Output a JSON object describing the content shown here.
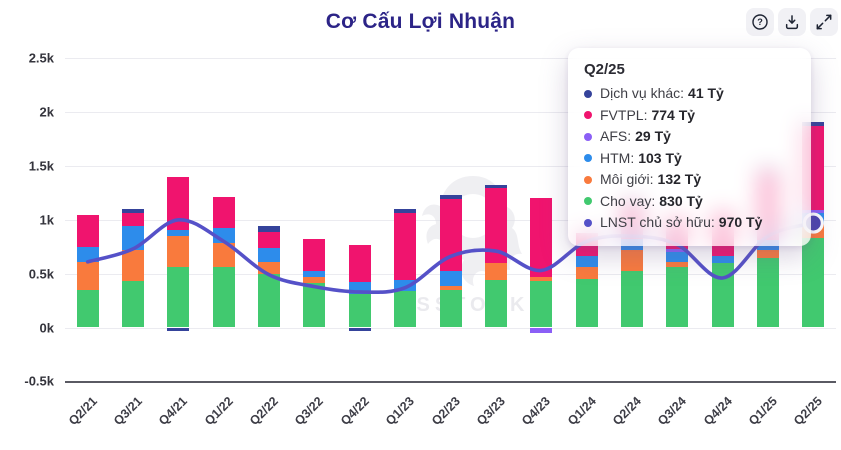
{
  "header": {
    "title": "Cơ Cấu Lợi Nhuận",
    "buttons": {
      "help": "help-button",
      "download": "download-button",
      "expand": "expand-button"
    }
  },
  "watermark_text": "SSTOCK",
  "chart_data": {
    "type": "bar",
    "subtype": "stacked-bars-with-line",
    "title": "Cơ Cấu Lợi Nhuận",
    "unit": "Tỷ",
    "categories": [
      "Q2/21",
      "Q3/21",
      "Q4/21",
      "Q1/22",
      "Q2/22",
      "Q3/22",
      "Q4/22",
      "Q1/23",
      "Q2/23",
      "Q3/23",
      "Q4/23",
      "Q1/24",
      "Q2/24",
      "Q3/24",
      "Q4/24",
      "Q1/25",
      "Q2/25"
    ],
    "y_axis": {
      "tick_labels": [
        "2.5k",
        "2k",
        "1.5k",
        "1k",
        "0.5k",
        "0k",
        "-0.5k"
      ],
      "tick_values": [
        2500,
        2000,
        1500,
        1000,
        500,
        0,
        -500
      ],
      "min": -500,
      "max": 2500,
      "grid": true
    },
    "stack_order_bottom_to_top": [
      "Cho vay",
      "Môi giới",
      "HTM",
      "AFS",
      "FVTPL",
      "Dịch vụ khác"
    ],
    "series": [
      {
        "name": "Dịch vụ khác",
        "type": "bar",
        "color": "#35439b",
        "values": [
          0,
          45,
          -30,
          0,
          56,
          0,
          -37,
          30,
          37,
          31,
          0,
          0,
          30,
          0,
          0,
          30,
          41
        ]
      },
      {
        "name": "FVTPL",
        "type": "bar",
        "color": "#f0146e",
        "values": [
          295,
          120,
          490,
          287,
          148,
          296,
          345,
          624,
          673,
          695,
          734,
          213,
          330,
          300,
          420,
          640,
          774
        ]
      },
      {
        "name": "AFS",
        "type": "bar",
        "color": "#8b5ff6",
        "values": [
          0,
          0,
          0,
          0,
          0,
          0,
          0,
          0,
          0,
          0,
          -55,
          0,
          0,
          34,
          0,
          0,
          29
        ]
      },
      {
        "name": "HTM",
        "type": "bar",
        "color": "#2d8ceb",
        "values": [
          140,
          220,
          55,
          139,
          130,
          56,
          111,
          101,
          139,
          0,
          0,
          109,
          99,
          89,
          61,
          93,
          103
        ]
      },
      {
        "name": "Môi giới",
        "type": "bar",
        "color": "#f97a3d",
        "values": [
          260,
          285,
          287,
          222,
          111,
          56,
          0,
          0,
          30,
          158,
          37,
          107,
          194,
          46,
          0,
          77,
          132
        ]
      },
      {
        "name": "Cho vay",
        "type": "bar",
        "color": "#41c96f",
        "values": [
          350,
          435,
          565,
          565,
          500,
          417,
          312,
          343,
          352,
          444,
          435,
          451,
          528,
          562,
          599,
          645,
          830
        ]
      },
      {
        "name": "LNST chủ sở hữu",
        "type": "line",
        "color": "#5551c8",
        "values": [
          610,
          730,
          1000,
          800,
          490,
          380,
          330,
          370,
          660,
          710,
          530,
          800,
          850,
          770,
          460,
          850,
          970
        ]
      }
    ],
    "tooltip": {
      "title": "Q2/25",
      "rows": [
        {
          "series": "Dịch vụ khác",
          "label": "Dịch vụ khác",
          "value": "41 Tỷ"
        },
        {
          "series": "FVTPL",
          "label": "FVTPL",
          "value": "774 Tỷ"
        },
        {
          "series": "AFS",
          "label": "AFS",
          "value": "29 Tỷ"
        },
        {
          "series": "HTM",
          "label": "HTM",
          "value": "103 Tỷ"
        },
        {
          "series": "Môi giới",
          "label": "Môi giới",
          "value": "132 Tỷ"
        },
        {
          "series": "Cho vay",
          "label": "Cho vay",
          "value": "830 Tỷ"
        },
        {
          "series": "LNST chủ sở hữu",
          "label": "LNST chủ sở hữu",
          "value": "970 Tỷ"
        }
      ]
    },
    "highlighted_point": {
      "series": "LNST chủ sở hữu",
      "category": "Q2/25",
      "value": 970
    }
  }
}
